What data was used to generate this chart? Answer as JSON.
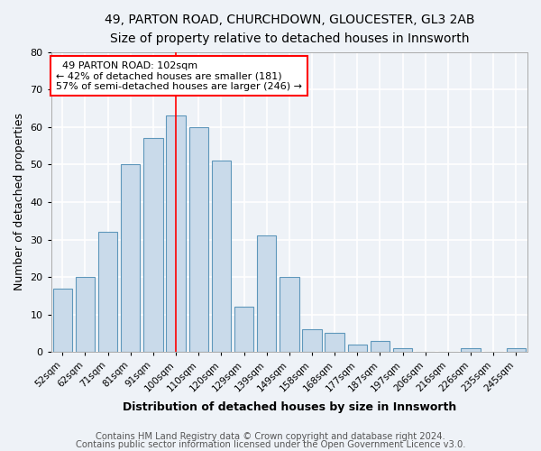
{
  "title1": "49, PARTON ROAD, CHURCHDOWN, GLOUCESTER, GL3 2AB",
  "title2": "Size of property relative to detached houses in Innsworth",
  "xlabel": "Distribution of detached houses by size in Innsworth",
  "ylabel": "Number of detached properties",
  "categories": [
    "52sqm",
    "62sqm",
    "71sqm",
    "81sqm",
    "91sqm",
    "100sqm",
    "110sqm",
    "120sqm",
    "129sqm",
    "139sqm",
    "149sqm",
    "158sqm",
    "168sqm",
    "177sqm",
    "187sqm",
    "197sqm",
    "206sqm",
    "216sqm",
    "226sqm",
    "235sqm",
    "245sqm"
  ],
  "values": [
    17,
    20,
    32,
    50,
    57,
    63,
    60,
    51,
    12,
    31,
    20,
    6,
    5,
    2,
    3,
    1,
    0,
    0,
    1,
    0,
    1
  ],
  "bar_color": "#c9daea",
  "bar_edge_color": "#5e97bb",
  "annotation_text": "  49 PARTON ROAD: 102sqm\n← 42% of detached houses are smaller (181)\n57% of semi-detached houses are larger (246) →",
  "annotation_box_color": "white",
  "annotation_box_edge": "red",
  "ylim": [
    0,
    80
  ],
  "yticks": [
    0,
    10,
    20,
    30,
    40,
    50,
    60,
    70,
    80
  ],
  "footer1": "Contains HM Land Registry data © Crown copyright and database right 2024.",
  "footer2": "Contains public sector information licensed under the Open Government Licence v3.0.",
  "bg_color": "#eef2f7",
  "grid_color": "white",
  "title_fontsize": 10,
  "subtitle_fontsize": 9.5,
  "tick_fontsize": 7.5,
  "label_fontsize": 9,
  "footer_fontsize": 7.2,
  "red_line_index": 5
}
